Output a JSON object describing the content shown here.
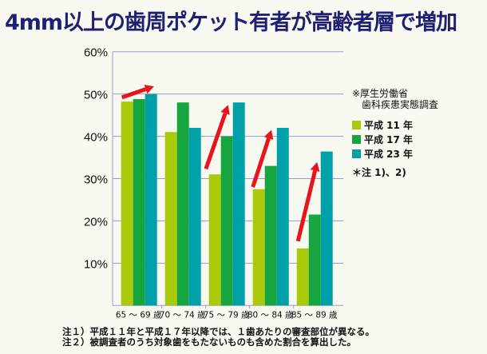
{
  "title": "4mm以上の歯周ポケット有者が高齢者層で増加",
  "chart_data": {
    "type": "bar",
    "title": "4mm以上の歯周ポケット有者が高齢者層で増加",
    "xlabel": "",
    "ylabel": "",
    "categories": [
      "65 ～ 69 歳",
      "70 ～ 74 歳",
      "75 ～ 79 歳",
      "80 ～ 84 歳",
      "85 ～ 89 歳"
    ],
    "series": [
      {
        "name": "平成 11 年",
        "color": "#a9c90a",
        "values": [
          48.2,
          41,
          31,
          27.5,
          13.5
        ]
      },
      {
        "name": "平成 17 年",
        "color": "#16a53e",
        "values": [
          48.8,
          48,
          40,
          33,
          21.5
        ]
      },
      {
        "name": "平成 23 年",
        "color": "#00a0a8",
        "values": [
          50,
          42,
          48,
          42,
          36.4
        ]
      }
    ],
    "ylim": [
      0,
      60
    ],
    "yticks": [
      "10%",
      "20%",
      "30%",
      "40%",
      "50%",
      "60%"
    ],
    "grid": true,
    "legend_position": "right",
    "annotations": {
      "arrow_color": "#e8141b",
      "arrows": [
        {
          "group": 0,
          "from": [
            0.07,
            49.2
          ],
          "to": [
            2.75,
            51.8
          ]
        },
        {
          "group": 2,
          "from": [
            -0.25,
            32.3
          ],
          "to": [
            1.6,
            47.4
          ]
        },
        {
          "group": 3,
          "from": [
            0.0,
            28.0
          ],
          "to": [
            1.55,
            41.5
          ]
        },
        {
          "group": 4,
          "from": [
            0.1,
            15.2
          ],
          "to": [
            1.7,
            33.9
          ]
        }
      ]
    }
  },
  "legend": {
    "source_line1": "※厚生労働省",
    "source_line2": "歯科疾患実態調査",
    "note": "＊注 1)、2)"
  },
  "notes": [
    "注１）平成１１年と平成１７年以降では、１歯あたりの審査部位が異なる。",
    "注２）被調査者のうち対象歯をもたないものも含めた割合を算出した。"
  ]
}
